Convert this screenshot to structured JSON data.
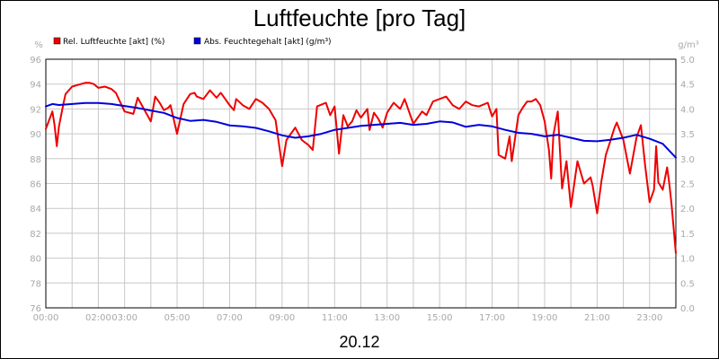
{
  "chart_data": {
    "type": "line",
    "title": "Luftfeuchte [pro Tag]",
    "date_label": "20.12",
    "left_unit": "%",
    "right_unit": "g/m³",
    "y_left_range": [
      76,
      96
    ],
    "y_right_range": [
      0.0,
      5.0
    ],
    "x_range_hours": [
      0,
      24
    ],
    "grid": true,
    "legend_position": "top-left",
    "x_ticks": [
      "00:00",
      "02:00",
      "03:00",
      "05:00",
      "07:00",
      "09:00",
      "11:00",
      "13:00",
      "15:00",
      "17:00",
      "19:00",
      "21:00",
      "23:00"
    ],
    "y_left_ticks": [
      "96",
      "94",
      "92",
      "90",
      "88",
      "86",
      "84",
      "82",
      "80",
      "78",
      "76"
    ],
    "y_right_ticks": [
      "5.0",
      "4.5",
      "4.0",
      "3.5",
      "3.0",
      "2.5",
      "2.0",
      "1.5",
      "1.0",
      "0.5",
      "0.0"
    ],
    "series": [
      {
        "name": "Rel. Luftfeuchte [akt] (%)",
        "color": "#ee0000",
        "axis": "left",
        "x": [
          "00:00",
          "00:15",
          "00:20",
          "00:25",
          "00:30",
          "00:40",
          "00:45",
          "01:00",
          "01:20",
          "01:30",
          "01:40",
          "01:50",
          "02:00",
          "02:15",
          "02:30",
          "02:40",
          "03:00",
          "03:20",
          "03:30",
          "04:00",
          "04:10",
          "04:20",
          "04:30",
          "04:40",
          "04:45",
          "05:00",
          "05:15",
          "05:30",
          "05:40",
          "05:45",
          "06:00",
          "06:15",
          "06:30",
          "06:40",
          "07:00",
          "07:10",
          "07:15",
          "07:30",
          "07:45",
          "08:00",
          "08:15",
          "08:30",
          "08:45",
          "09:00",
          "09:10",
          "09:30",
          "09:45",
          "10:00",
          "10:10",
          "10:20",
          "10:40",
          "10:50",
          "11:00",
          "11:10",
          "11:20",
          "11:30",
          "11:40",
          "11:50",
          "12:00",
          "12:15",
          "12:20",
          "12:30",
          "12:40",
          "12:50",
          "13:00",
          "13:15",
          "13:30",
          "13:40",
          "14:00",
          "14:20",
          "14:30",
          "14:45",
          "15:00",
          "15:15",
          "15:30",
          "15:45",
          "16:00",
          "16:15",
          "16:30",
          "16:50",
          "17:00",
          "17:10",
          "17:15",
          "17:30",
          "17:40",
          "17:45",
          "18:00",
          "18:10",
          "18:20",
          "18:30",
          "18:40",
          "18:50",
          "19:00",
          "19:10",
          "19:15",
          "19:20",
          "19:30",
          "19:40",
          "19:50",
          "20:00",
          "20:15",
          "20:30",
          "20:45",
          "20:50",
          "21:00",
          "21:10",
          "21:20",
          "21:30",
          "21:40",
          "21:45",
          "22:00",
          "22:15",
          "22:30",
          "22:40",
          "22:50",
          "23:00",
          "23:10",
          "23:15",
          "23:20",
          "23:30",
          "23:40",
          "23:45",
          "23:50",
          "24:00"
        ],
        "values": [
          90.4,
          91.8,
          90.7,
          89.0,
          90.6,
          92.4,
          93.2,
          93.8,
          94.0,
          94.1,
          94.1,
          94.0,
          93.7,
          93.8,
          93.6,
          93.3,
          91.8,
          91.6,
          92.9,
          91.0,
          93.0,
          92.5,
          91.9,
          92.1,
          92.3,
          90.0,
          92.4,
          93.2,
          93.3,
          93.0,
          92.8,
          93.5,
          92.9,
          93.3,
          92.3,
          91.9,
          92.8,
          92.3,
          92.0,
          92.8,
          92.5,
          92.0,
          91.1,
          87.4,
          89.5,
          90.5,
          89.5,
          89.1,
          88.7,
          92.2,
          92.5,
          91.5,
          92.2,
          88.4,
          91.5,
          90.6,
          91.0,
          91.9,
          91.3,
          92.0,
          90.3,
          91.7,
          91.2,
          90.5,
          91.7,
          92.5,
          92.0,
          92.8,
          90.8,
          91.8,
          91.5,
          92.6,
          92.8,
          93.0,
          92.3,
          92.0,
          92.6,
          92.3,
          92.2,
          92.5,
          91.4,
          92.0,
          88.3,
          88.0,
          89.8,
          87.8,
          91.5,
          92.1,
          92.6,
          92.6,
          92.8,
          92.3,
          91.0,
          88.7,
          86.4,
          89.9,
          91.8,
          85.6,
          87.8,
          84.1,
          87.8,
          86.0,
          86.5,
          85.8,
          83.6,
          86.2,
          88.3,
          89.4,
          90.5,
          90.9,
          89.5,
          86.8,
          89.7,
          90.7,
          87.4,
          84.5,
          85.5,
          89.0,
          86.1,
          85.5,
          87.3,
          86.0,
          84.4,
          80.4
        ]
      },
      {
        "name": "Abs. Feuchtegehalt [akt] (g/m³)",
        "color": "#0000dd",
        "axis": "right",
        "x": [
          "00:00",
          "00:15",
          "00:30",
          "01:00",
          "01:30",
          "02:00",
          "02:30",
          "03:00",
          "03:30",
          "04:00",
          "04:30",
          "05:00",
          "05:30",
          "06:00",
          "06:30",
          "07:00",
          "07:30",
          "08:00",
          "08:30",
          "09:00",
          "09:30",
          "10:00",
          "10:30",
          "11:00",
          "11:30",
          "12:00",
          "12:30",
          "13:00",
          "13:30",
          "14:00",
          "14:30",
          "15:00",
          "15:30",
          "16:00",
          "16:30",
          "17:00",
          "17:30",
          "18:00",
          "18:30",
          "19:00",
          "19:30",
          "20:00",
          "20:30",
          "21:00",
          "21:30",
          "22:00",
          "22:30",
          "23:00",
          "23:30",
          "24:00"
        ],
        "values": [
          4.05,
          4.1,
          4.08,
          4.1,
          4.12,
          4.12,
          4.1,
          4.06,
          4.02,
          3.97,
          3.92,
          3.82,
          3.76,
          3.78,
          3.74,
          3.67,
          3.65,
          3.62,
          3.55,
          3.47,
          3.42,
          3.45,
          3.5,
          3.58,
          3.62,
          3.66,
          3.68,
          3.7,
          3.72,
          3.68,
          3.7,
          3.75,
          3.73,
          3.64,
          3.68,
          3.65,
          3.58,
          3.52,
          3.5,
          3.45,
          3.48,
          3.42,
          3.36,
          3.35,
          3.38,
          3.42,
          3.48,
          3.4,
          3.3,
          3.02
        ]
      }
    ]
  }
}
